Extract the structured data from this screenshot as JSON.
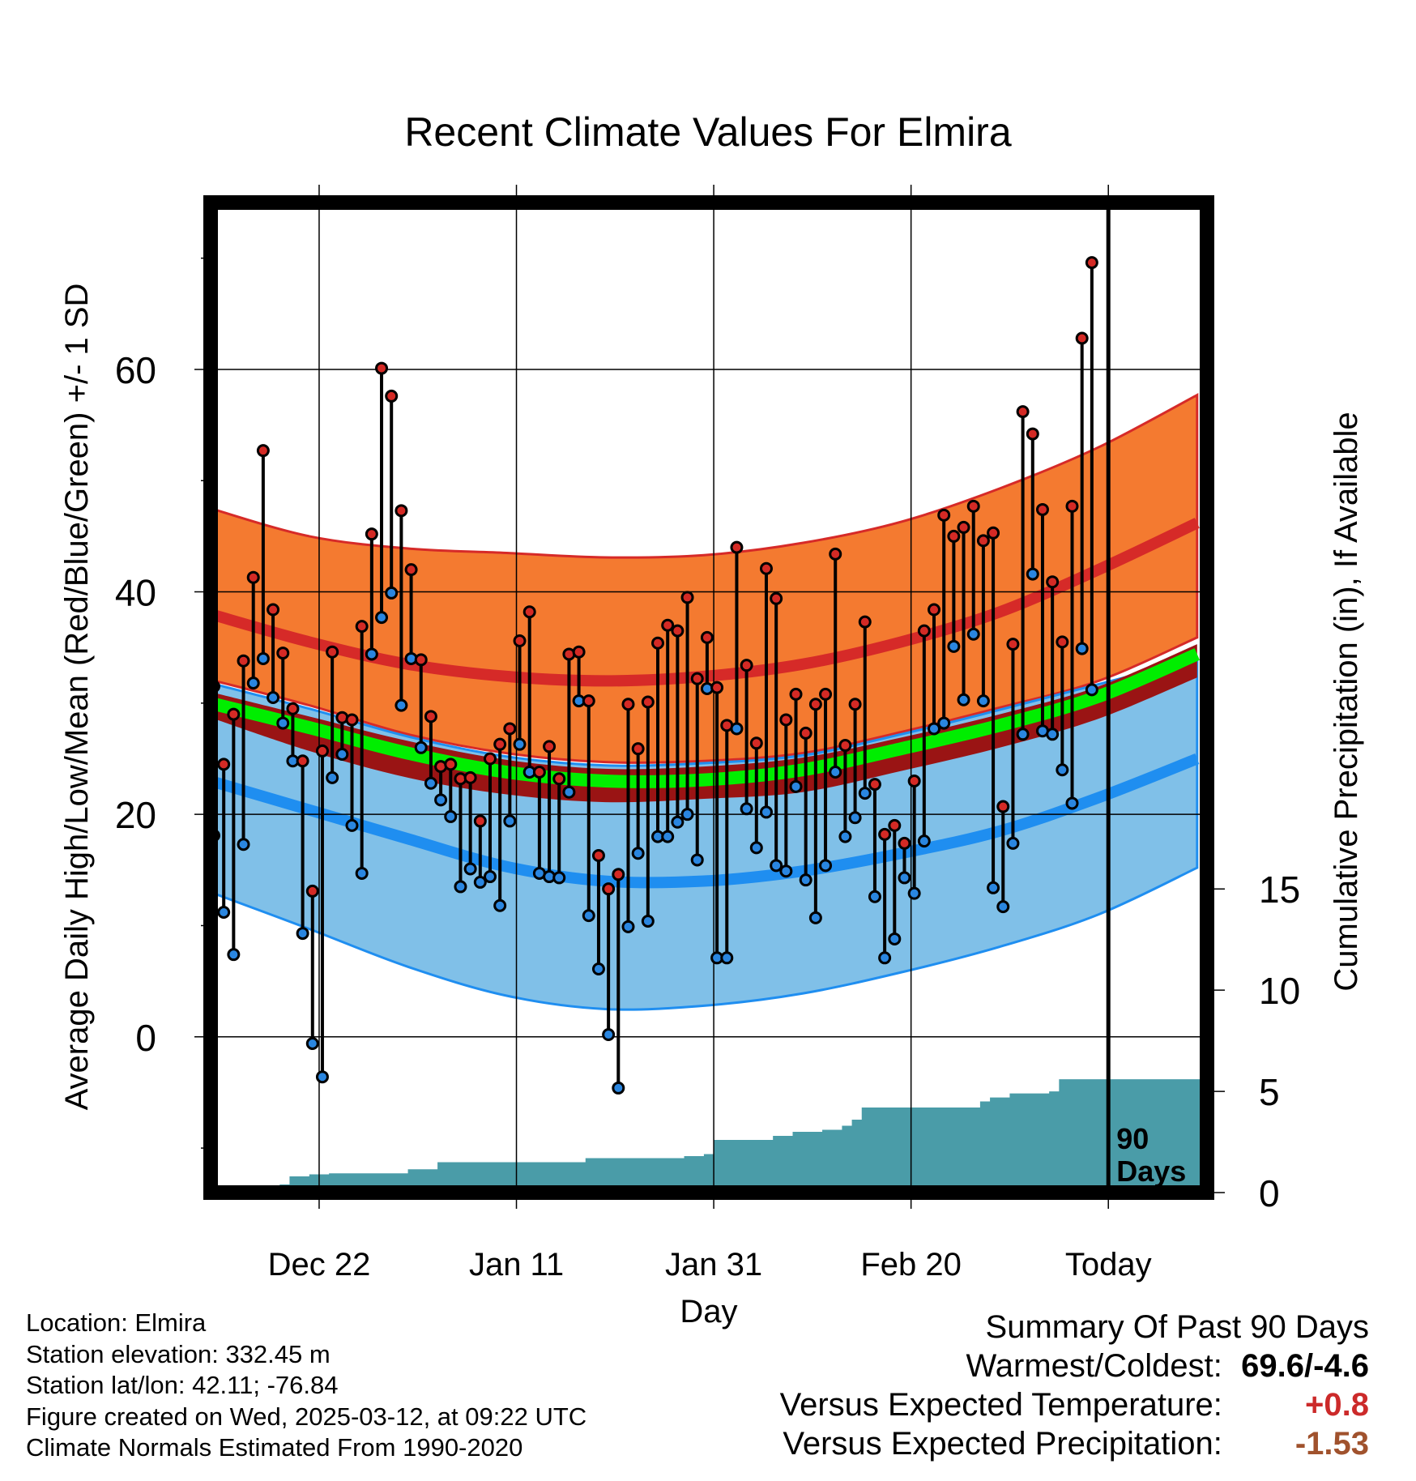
{
  "chart_data": {
    "type": "line",
    "title": "Recent Climate Values For Elmira",
    "xlabel": "Day",
    "ylabel": "Average Daily High/Low/Mean (Red/Blue/Green) +/- 1 SD",
    "y2label": "Cumulative Precipitation (in), If Available",
    "x_tick_labels": [
      "Dec 22",
      "Jan 11",
      "Jan 31",
      "Feb 20",
      "Today"
    ],
    "y_ticks": [
      0,
      20,
      40,
      60
    ],
    "y2_ticks": [
      0,
      5,
      10,
      15
    ],
    "ylim": [
      -14,
      75
    ],
    "y2lim": [
      0,
      15
    ],
    "xlim": [
      "2024-12-11",
      "2025-03-22"
    ],
    "grid": true,
    "today_marker": "90\nDays",
    "colors": {
      "high_band": "#f47a30",
      "high_mean": "#d62a28",
      "low_band": "#80c0e8",
      "low_mean": "#1f8ef0",
      "mean_band": "#9a1414",
      "mean_line": "#00ee00",
      "precip": "#4a9ca8",
      "high_marker": "#d42a25",
      "low_marker": "#2a86e0"
    },
    "normals": {
      "dates": [
        "2024-12-11",
        "2024-12-21",
        "2024-12-31",
        "2025-01-10",
        "2025-01-20",
        "2025-01-30",
        "2025-02-09",
        "2025-02-19",
        "2025-03-01",
        "2025-03-11",
        "2025-03-21"
      ],
      "high_upper": [
        47.5,
        45.0,
        43.9,
        43.5,
        43.1,
        43.3,
        44.4,
        46.3,
        49.3,
        53.0,
        57.7
      ],
      "high_mean": [
        38.0,
        35.5,
        33.5,
        32.4,
        32.0,
        32.4,
        33.5,
        35.5,
        38.2,
        42.0,
        46.2
      ],
      "high_lower": [
        32.1,
        29.8,
        27.2,
        25.5,
        24.7,
        24.8,
        25.5,
        27.4,
        29.6,
        32.0,
        35.9
      ],
      "mean_upper": [
        31.0,
        28.8,
        26.6,
        24.9,
        24.1,
        24.3,
        25.1,
        26.9,
        29.0,
        31.5,
        35.3
      ],
      "mean_line": [
        30.0,
        27.8,
        25.5,
        23.8,
        23.0,
        23.1,
        24.0,
        25.9,
        28.0,
        30.6,
        34.4
      ],
      "mean_lower": [
        28.7,
        25.7,
        23.3,
        21.8,
        21.1,
        21.4,
        22.0,
        23.9,
        26.0,
        28.6,
        32.3
      ],
      "low_upper": [
        31.8,
        29.5,
        27.0,
        25.2,
        24.4,
        24.6,
        25.3,
        27.2,
        29.4,
        31.7,
        34.0
      ],
      "low_mean": [
        23.0,
        20.4,
        17.8,
        15.3,
        14.0,
        14.0,
        14.9,
        16.5,
        18.5,
        21.5,
        25.0
      ],
      "low_lower": [
        13.0,
        9.7,
        6.3,
        3.7,
        2.5,
        2.8,
        3.9,
        5.8,
        8.1,
        11.0,
        15.2
      ]
    },
    "series": [
      {
        "name": "High",
        "x": [
          "2024-12-11",
          "2024-12-12",
          "2024-12-13",
          "2024-12-14",
          "2024-12-15",
          "2024-12-16",
          "2024-12-17",
          "2024-12-18",
          "2024-12-19",
          "2024-12-20",
          "2024-12-21",
          "2024-12-22",
          "2024-12-23",
          "2024-12-24",
          "2024-12-25",
          "2024-12-26",
          "2024-12-27",
          "2024-12-28",
          "2024-12-29",
          "2024-12-30",
          "2024-12-31",
          "2025-01-01",
          "2025-01-02",
          "2025-01-03",
          "2025-01-04",
          "2025-01-05",
          "2025-01-06",
          "2025-01-07",
          "2025-01-08",
          "2025-01-09",
          "2025-01-10",
          "2025-01-11",
          "2025-01-12",
          "2025-01-13",
          "2025-01-14",
          "2025-01-15",
          "2025-01-16",
          "2025-01-17",
          "2025-01-18",
          "2025-01-19",
          "2025-01-20",
          "2025-01-21",
          "2025-01-22",
          "2025-01-23",
          "2025-01-24",
          "2025-01-25",
          "2025-01-26",
          "2025-01-27",
          "2025-01-28",
          "2025-01-29",
          "2025-01-30",
          "2025-01-31",
          "2025-02-01",
          "2025-02-02",
          "2025-02-03",
          "2025-02-04",
          "2025-02-05",
          "2025-02-06",
          "2025-02-07",
          "2025-02-08",
          "2025-02-09",
          "2025-02-10",
          "2025-02-11",
          "2025-02-12",
          "2025-02-13",
          "2025-02-14",
          "2025-02-15",
          "2025-02-16",
          "2025-02-17",
          "2025-02-18",
          "2025-02-19",
          "2025-02-20",
          "2025-02-21",
          "2025-02-22",
          "2025-02-23",
          "2025-02-24",
          "2025-02-25",
          "2025-02-26",
          "2025-02-27",
          "2025-02-28",
          "2025-03-01",
          "2025-03-02",
          "2025-03-03",
          "2025-03-04",
          "2025-03-05",
          "2025-03-06",
          "2025-03-07",
          "2025-03-08",
          "2025-03-09",
          "2025-03-10"
        ],
        "values": [
          31.5,
          24.5,
          29.0,
          33.8,
          41.3,
          52.7,
          38.4,
          34.5,
          29.5,
          24.8,
          13.1,
          25.7,
          34.6,
          28.7,
          28.5,
          36.9,
          45.2,
          60.1,
          57.6,
          47.3,
          42.0,
          33.9,
          28.8,
          24.3,
          24.5,
          23.2,
          23.3,
          19.4,
          25.0,
          26.3,
          27.7,
          35.6,
          38.2,
          23.8,
          26.1,
          23.2,
          34.4,
          34.6,
          30.2,
          16.3,
          13.3,
          14.6,
          29.9,
          25.9,
          30.1,
          35.4,
          37.0,
          36.5,
          39.5,
          32.2,
          35.9,
          31.4,
          28.0,
          44.0,
          33.4,
          26.4,
          42.1,
          39.4,
          28.5,
          30.8,
          27.3,
          29.9,
          30.8,
          43.4,
          26.2,
          29.9,
          37.3,
          22.7,
          18.2,
          19.0,
          17.4,
          23.0,
          36.5,
          38.4,
          46.9,
          45.0,
          45.8,
          47.7,
          44.6,
          45.3,
          20.7,
          35.3,
          56.2,
          54.2,
          47.4,
          40.9,
          35.5,
          47.7,
          62.8,
          69.6
        ]
      },
      {
        "name": "Low",
        "x": [
          "2024-12-11",
          "2024-12-12",
          "2024-12-13",
          "2024-12-14",
          "2024-12-15",
          "2024-12-16",
          "2024-12-17",
          "2024-12-18",
          "2024-12-19",
          "2024-12-20",
          "2024-12-21",
          "2024-12-22",
          "2024-12-23",
          "2024-12-24",
          "2024-12-25",
          "2024-12-26",
          "2024-12-27",
          "2024-12-28",
          "2024-12-29",
          "2024-12-30",
          "2024-12-31",
          "2025-01-01",
          "2025-01-02",
          "2025-01-03",
          "2025-01-04",
          "2025-01-05",
          "2025-01-06",
          "2025-01-07",
          "2025-01-08",
          "2025-01-09",
          "2025-01-10",
          "2025-01-11",
          "2025-01-12",
          "2025-01-13",
          "2025-01-14",
          "2025-01-15",
          "2025-01-16",
          "2025-01-17",
          "2025-01-18",
          "2025-01-19",
          "2025-01-20",
          "2025-01-21",
          "2025-01-22",
          "2025-01-23",
          "2025-01-24",
          "2025-01-25",
          "2025-01-26",
          "2025-01-27",
          "2025-01-28",
          "2025-01-29",
          "2025-01-30",
          "2025-01-31",
          "2025-02-01",
          "2025-02-02",
          "2025-02-03",
          "2025-02-04",
          "2025-02-05",
          "2025-02-06",
          "2025-02-07",
          "2025-02-08",
          "2025-02-09",
          "2025-02-10",
          "2025-02-11",
          "2025-02-12",
          "2025-02-13",
          "2025-02-14",
          "2025-02-15",
          "2025-02-16",
          "2025-02-17",
          "2025-02-18",
          "2025-02-19",
          "2025-02-20",
          "2025-02-21",
          "2025-02-22",
          "2025-02-23",
          "2025-02-24",
          "2025-02-25",
          "2025-02-26",
          "2025-02-27",
          "2025-02-28",
          "2025-03-01",
          "2025-03-02",
          "2025-03-03",
          "2025-03-04",
          "2025-03-05",
          "2025-03-06",
          "2025-03-07",
          "2025-03-08",
          "2025-03-09",
          "2025-03-10"
        ],
        "values": [
          18.1,
          11.2,
          7.4,
          17.3,
          31.8,
          34.0,
          30.5,
          28.2,
          24.8,
          9.3,
          -0.6,
          -3.6,
          23.3,
          25.4,
          19.0,
          14.7,
          34.4,
          37.7,
          39.9,
          29.8,
          34.0,
          26.0,
          22.8,
          21.3,
          19.8,
          13.5,
          15.1,
          13.9,
          14.4,
          11.8,
          19.4,
          26.3,
          23.8,
          14.7,
          14.4,
          14.3,
          22.0,
          30.2,
          10.9,
          6.1,
          0.2,
          -4.6,
          9.9,
          16.5,
          10.4,
          18.0,
          18.0,
          19.3,
          20.0,
          15.9,
          31.3,
          7.1,
          7.1,
          27.7,
          20.5,
          17.0,
          20.2,
          15.4,
          14.9,
          22.5,
          14.1,
          10.7,
          15.4,
          23.8,
          18.0,
          19.7,
          21.9,
          12.6,
          7.1,
          8.8,
          14.3,
          12.9,
          17.6,
          27.7,
          28.2,
          35.1,
          30.3,
          36.2,
          30.2,
          13.4,
          11.7,
          17.4,
          27.2,
          41.6,
          27.5,
          27.2,
          24.0,
          21.0,
          34.9,
          31.2
        ]
      }
    ],
    "precipitation": {
      "x": [
        "2024-12-11",
        "2024-12-16",
        "2024-12-18",
        "2024-12-19",
        "2024-12-21",
        "2024-12-23",
        "2024-12-31",
        "2025-01-03",
        "2025-01-18",
        "2025-01-28",
        "2025-01-30",
        "2025-01-31",
        "2025-02-06",
        "2025-02-08",
        "2025-02-11",
        "2025-02-13",
        "2025-02-14",
        "2025-02-15",
        "2025-02-27",
        "2025-02-28",
        "2025-03-02",
        "2025-03-06",
        "2025-03-07",
        "2025-03-22"
      ],
      "values": [
        0,
        0.02,
        0.4,
        0.8,
        0.9,
        0.95,
        1.15,
        1.5,
        1.7,
        1.8,
        1.9,
        2.6,
        2.8,
        3.0,
        3.1,
        3.3,
        3.6,
        4.2,
        4.5,
        4.7,
        4.9,
        5.0,
        5.6,
        5.6
      ]
    }
  },
  "meta": {
    "location": "Location: Elmira",
    "elevation": "Station elevation: 332.45 m",
    "latlon": "Station lat/lon: 42.11; -76.84",
    "created": "Figure created on Wed, 2025-03-12, at 09:22 UTC",
    "normals": "Climate Normals Estimated From 1990-2020"
  },
  "summary": {
    "title": "Summary Of Past 90 Days",
    "warmest_label": "Warmest/Coldest:",
    "warmest_value": "69.6/-4.6",
    "temp_label": "Versus Expected Temperature:",
    "temp_value": "+0.8",
    "temp_color": "#cc2a2a",
    "precip_label": "Versus Expected Precipitation:",
    "precip_value": "-1.53",
    "precip_color": "#a0522d"
  }
}
